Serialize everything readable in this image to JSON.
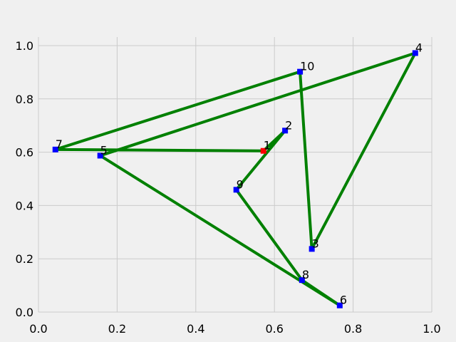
{
  "chart_data": {
    "type": "line",
    "title": "",
    "xlabel": "",
    "ylabel": "",
    "xlim": [
      0.0,
      1.0
    ],
    "ylim": [
      0.0,
      1.0
    ],
    "grid": true,
    "xticks": [
      "0.0",
      "0.2",
      "0.4",
      "0.6",
      "0.8",
      "1.0"
    ],
    "yticks": [
      "0.0",
      "0.2",
      "0.4",
      "0.6",
      "0.8",
      "1.0"
    ],
    "points": [
      {
        "label": "1",
        "x": 0.572,
        "y": 0.605
      },
      {
        "label": "2",
        "x": 0.627,
        "y": 0.681
      },
      {
        "label": "3",
        "x": 0.695,
        "y": 0.237
      },
      {
        "label": "4",
        "x": 0.958,
        "y": 0.972
      },
      {
        "label": "5",
        "x": 0.157,
        "y": 0.587
      },
      {
        "label": "6",
        "x": 0.766,
        "y": 0.025
      },
      {
        "label": "7",
        "x": 0.043,
        "y": 0.61
      },
      {
        "label": "8",
        "x": 0.67,
        "y": 0.12
      },
      {
        "label": "9",
        "x": 0.503,
        "y": 0.459
      },
      {
        "label": "10",
        "x": 0.665,
        "y": 0.902
      }
    ],
    "path_order": [
      "1",
      "2",
      "9",
      "8",
      "6",
      "5",
      "4",
      "3",
      "10",
      "7",
      "1"
    ],
    "colors": {
      "line": "#008000",
      "start_marker": "#ff0000",
      "marker": "#0000ff",
      "grid": "#cbcbcb",
      "background": "#f0f0f0"
    }
  }
}
